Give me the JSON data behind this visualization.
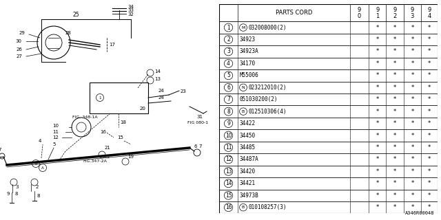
{
  "bg_color": "#ffffff",
  "line_color": "#000000",
  "table_font_size": 6.0,
  "rows_data": [
    [
      "1",
      "M",
      "032008000(2)",
      true
    ],
    [
      "2",
      "",
      "34923",
      false
    ],
    [
      "3",
      "",
      "34923A",
      false
    ],
    [
      "4",
      "",
      "34170",
      false
    ],
    [
      "5",
      "",
      "M55006",
      false
    ],
    [
      "6",
      "N",
      "023212010(2)",
      true
    ],
    [
      "7",
      "",
      "051030200(2)",
      false
    ],
    [
      "8",
      "B",
      "012510306(4)",
      true
    ],
    [
      "9",
      "",
      "34422",
      false
    ],
    [
      "10",
      "",
      "34450",
      false
    ],
    [
      "11",
      "",
      "34485",
      false
    ],
    [
      "12",
      "",
      "34487A",
      false
    ],
    [
      "13",
      "",
      "34420",
      false
    ],
    [
      "14",
      "",
      "34421",
      false
    ],
    [
      "15",
      "",
      "34973B",
      false
    ],
    [
      "16",
      "B",
      "010108257(3)",
      true
    ]
  ],
  "year_cols": [
    "9\n0",
    "9\n1",
    "9\n2",
    "9\n3",
    "9\n4"
  ],
  "star_cols": [
    false,
    true,
    true,
    true,
    true
  ],
  "footer_text": "A346R00048"
}
